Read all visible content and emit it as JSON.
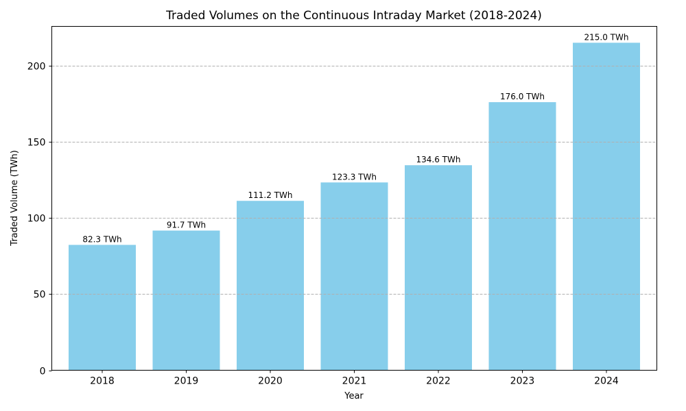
{
  "chart_data": {
    "type": "bar",
    "title": "Traded Volumes on the Continuous Intraday Market (2018-2024)",
    "xlabel": "Year",
    "ylabel": "Traded Volume (TWh)",
    "categories": [
      "2018",
      "2019",
      "2020",
      "2021",
      "2022",
      "2023",
      "2024"
    ],
    "values": [
      82.3,
      91.7,
      111.2,
      123.3,
      134.6,
      176.0,
      215.0
    ],
    "data_labels": [
      "82.3 TWh",
      "91.7 TWh",
      "111.2 TWh",
      "123.3 TWh",
      "134.6 TWh",
      "176.0 TWh",
      "215.0 TWh"
    ],
    "ylim": [
      0,
      225.75
    ],
    "yticks": [
      0,
      50,
      100,
      150,
      200
    ],
    "ytick_labels": [
      "0",
      "50",
      "100",
      "150",
      "200"
    ],
    "grid": "y-dashed",
    "bar_color": "#87CEEB"
  }
}
